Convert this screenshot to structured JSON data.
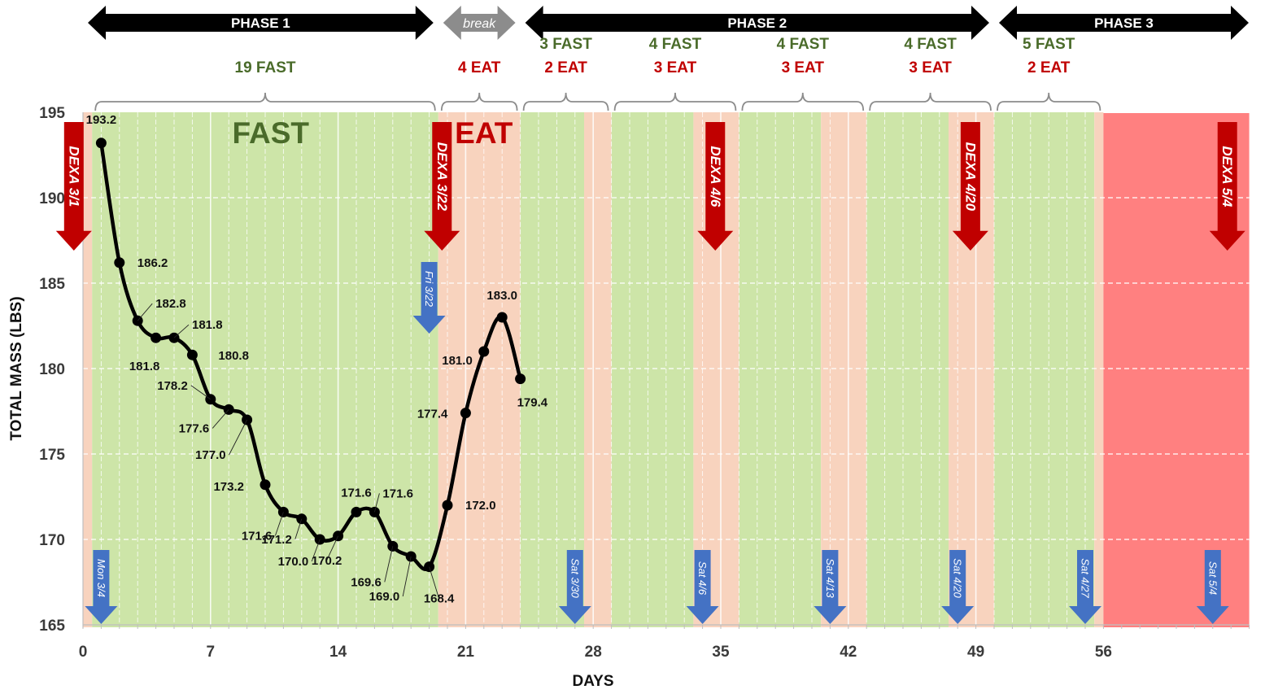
{
  "chart_data": {
    "type": "line",
    "title": "",
    "xlabel": "DAYS",
    "ylabel": "TOTAL MASS (LBS)",
    "xlim": [
      0,
      64
    ],
    "ylim": [
      165,
      195
    ],
    "x_ticks": [
      "0",
      "7",
      "14",
      "21",
      "28",
      "35",
      "42",
      "49",
      "56"
    ],
    "y_ticks": [
      "165",
      "170",
      "175",
      "180",
      "185",
      "190",
      "195"
    ],
    "grid": "vertical lines at each day",
    "series": [
      {
        "name": "",
        "color": "#000000",
        "x": [
          1,
          2,
          3,
          4,
          5,
          6,
          7,
          8,
          9,
          10,
          11,
          12,
          13,
          14,
          15,
          16,
          17,
          18,
          19,
          20,
          21,
          22,
          23,
          24
        ],
        "y": [
          193.2,
          186.2,
          182.8,
          181.8,
          181.8,
          180.8,
          178.2,
          177.6,
          177.0,
          173.2,
          171.6,
          171.2,
          170.0,
          170.2,
          171.6,
          171.6,
          169.6,
          169.0,
          168.4,
          172.0,
          177.4,
          181.0,
          183.0,
          179.4
        ],
        "labels": [
          "193.2",
          "186.2",
          "182.8",
          "181.8",
          "181.8",
          "180.8",
          "178.2",
          "177.6",
          "177.0",
          "173.2",
          "171.6",
          "171.2",
          "170.0",
          "170.2",
          "171.6",
          "171.6",
          "169.6",
          "169.0",
          "168.4",
          "172.0",
          "177.4",
          "181.0",
          "183.0",
          "179.4"
        ]
      }
    ],
    "bands": [
      {
        "kind": "eat",
        "from": 0,
        "to": 0.5
      },
      {
        "kind": "fast",
        "from": 0.5,
        "to": 19.5
      },
      {
        "kind": "eat",
        "from": 19.5,
        "to": 24
      },
      {
        "kind": "fast",
        "from": 24,
        "to": 27.5
      },
      {
        "kind": "eat",
        "from": 27.5,
        "to": 29
      },
      {
        "kind": "fast",
        "from": 29,
        "to": 33.5
      },
      {
        "kind": "eat",
        "from": 33.5,
        "to": 36
      },
      {
        "kind": "fast",
        "from": 36,
        "to": 40.5
      },
      {
        "kind": "eat",
        "from": 40.5,
        "to": 43
      },
      {
        "kind": "fast",
        "from": 43,
        "to": 47.5
      },
      {
        "kind": "eat",
        "from": 47.5,
        "to": 50
      },
      {
        "kind": "fast",
        "from": 50,
        "to": 55.5
      },
      {
        "kind": "eat",
        "from": 55.5,
        "to": 56
      },
      {
        "kind": "phase3",
        "from": 56,
        "to": 64
      }
    ],
    "band_colors": {
      "fast": "#cde5a8",
      "eat": "#f8d3be",
      "phase3": "#ff8080"
    },
    "phases": [
      {
        "label": "PHASE 1",
        "from": 0,
        "to": 19.5,
        "color": "#000000"
      },
      {
        "label": "break",
        "from": 19.5,
        "to": 24,
        "color": "#8c8c8c"
      },
      {
        "label": "PHASE 2",
        "from": 24,
        "to": 50,
        "color": "#000000"
      },
      {
        "label": "PHASE 3",
        "from": 50,
        "to": 64,
        "color": "#000000"
      }
    ],
    "brackets": [
      {
        "from": 0.5,
        "to": 19.5,
        "fast": "19 FAST",
        "eat": ""
      },
      {
        "from": 19.5,
        "to": 24,
        "fast": "",
        "eat": "4 EAT"
      },
      {
        "from": 24,
        "to": 29,
        "fast": "3 FAST",
        "eat": "2 EAT"
      },
      {
        "from": 29,
        "to": 36,
        "fast": "4 FAST",
        "eat": "3 EAT"
      },
      {
        "from": 36,
        "to": 43,
        "fast": "4 FAST",
        "eat": "3 EAT"
      },
      {
        "from": 43,
        "to": 50,
        "fast": "4 FAST",
        "eat": "3 EAT"
      },
      {
        "from": 50,
        "to": 56,
        "fast": "5 FAST",
        "eat": "2 EAT"
      }
    ],
    "zone_labels": [
      {
        "text": "FAST",
        "x": 10.3,
        "kind": "fast"
      },
      {
        "text": "EAT",
        "x": 22,
        "kind": "eat"
      }
    ],
    "dexa_markers": [
      {
        "label": "DEXA 3/1",
        "x": -0.5
      },
      {
        "label": "DEXA 3/22",
        "x": 19.7
      },
      {
        "label": "DEXA 4/6",
        "x": 34.7
      },
      {
        "label": "DEXA 4/20",
        "x": 48.7
      },
      {
        "label": "DEXA 5/4",
        "x": 62.8
      }
    ],
    "day_markers": [
      {
        "label": "Mon 3/4",
        "x": 1,
        "pos": "bottom"
      },
      {
        "label": "Fri 3/22",
        "x": 19,
        "pos": "mid"
      },
      {
        "label": "Sat 3/30",
        "x": 27,
        "pos": "bottom"
      },
      {
        "label": "Sat 4/6",
        "x": 34,
        "pos": "bottom"
      },
      {
        "label": "Sat 4/13",
        "x": 41,
        "pos": "bottom"
      },
      {
        "label": "Sat 4/20",
        "x": 48,
        "pos": "bottom"
      },
      {
        "label": "Sat 4/27",
        "x": 55,
        "pos": "bottom"
      },
      {
        "label": "Sat 5/4",
        "x": 62,
        "pos": "bottom"
      }
    ],
    "marker_colors": {
      "dexa": "#c00000",
      "day": "#4472c4"
    }
  }
}
